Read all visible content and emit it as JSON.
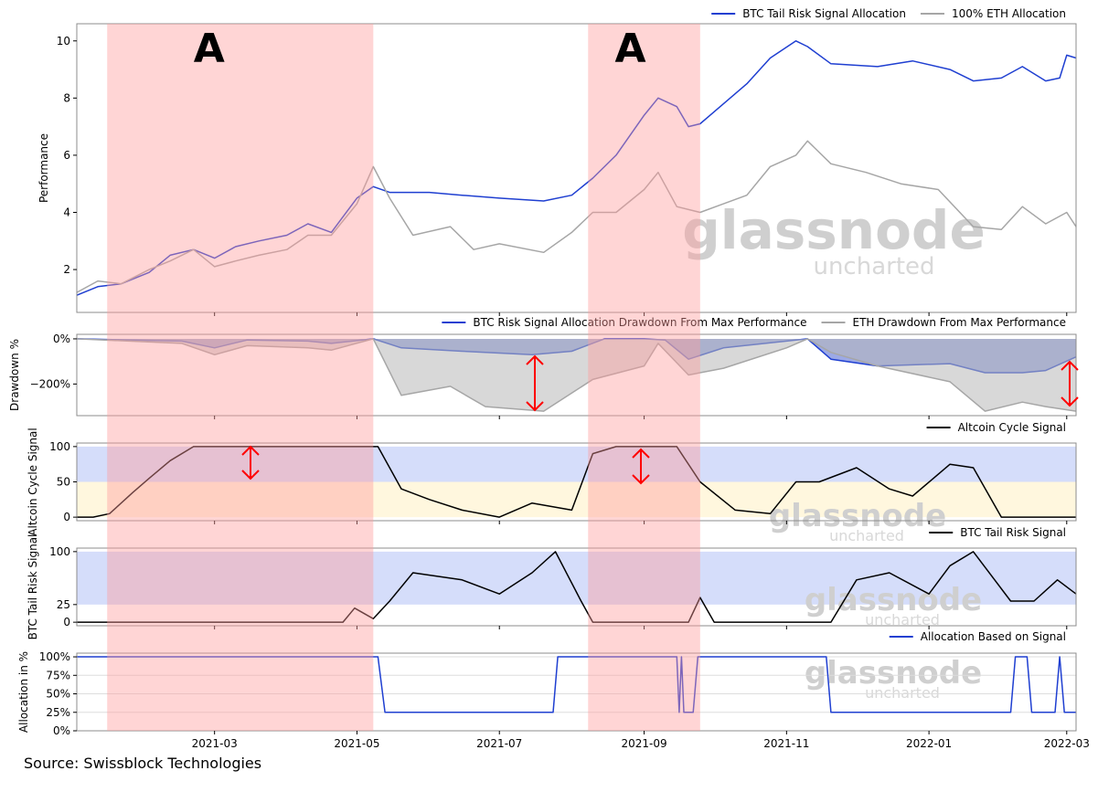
{
  "source": "Source: Swissblock Technologies",
  "regions": {
    "label": "A",
    "periods": [
      [
        "2021-01-14",
        "2021-05-08"
      ],
      [
        "2021-08-08",
        "2021-09-25"
      ]
    ]
  },
  "watermark": {
    "brand": "glassnode",
    "sub": "uncharted"
  },
  "colors": {
    "blue": "#1f3fd1",
    "gray": "#a6a6a6",
    "black": "#000000",
    "shade_red": "#ff9c9c",
    "band_blue": "#b3c1f5",
    "band_yellow": "#fff1c2",
    "arrow_red": "#ff0000"
  },
  "chart_data": [
    {
      "type": "line",
      "ylabel": "Performance",
      "ylim": [
        0.5,
        10.6
      ],
      "yticks": [
        2,
        4,
        6,
        8,
        10
      ],
      "legend": "top-right",
      "series": [
        {
          "name": "BTC Tail Risk Signal Allocation",
          "color": "#1f3fd1",
          "points": [
            [
              "2021-01-01",
              1.1
            ],
            [
              "2021-01-10",
              1.4
            ],
            [
              "2021-01-20",
              1.5
            ],
            [
              "2021-02-01",
              1.9
            ],
            [
              "2021-02-10",
              2.5
            ],
            [
              "2021-02-20",
              2.7
            ],
            [
              "2021-03-01",
              2.4
            ],
            [
              "2021-03-10",
              2.8
            ],
            [
              "2021-03-20",
              3.0
            ],
            [
              "2021-04-01",
              3.2
            ],
            [
              "2021-04-10",
              3.6
            ],
            [
              "2021-04-20",
              3.3
            ],
            [
              "2021-05-01",
              4.5
            ],
            [
              "2021-05-08",
              4.9
            ],
            [
              "2021-05-15",
              4.7
            ],
            [
              "2021-06-01",
              4.7
            ],
            [
              "2021-06-15",
              4.6
            ],
            [
              "2021-07-01",
              4.5
            ],
            [
              "2021-07-20",
              4.4
            ],
            [
              "2021-08-01",
              4.6
            ],
            [
              "2021-08-10",
              5.2
            ],
            [
              "2021-08-20",
              6.0
            ],
            [
              "2021-09-01",
              7.4
            ],
            [
              "2021-09-07",
              8.0
            ],
            [
              "2021-09-15",
              7.7
            ],
            [
              "2021-09-20",
              7.0
            ],
            [
              "2021-09-25",
              7.1
            ],
            [
              "2021-10-05",
              7.8
            ],
            [
              "2021-10-15",
              8.5
            ],
            [
              "2021-10-25",
              9.4
            ],
            [
              "2021-11-05",
              10.0
            ],
            [
              "2021-11-10",
              9.8
            ],
            [
              "2021-11-20",
              9.2
            ],
            [
              "2021-12-10",
              9.1
            ],
            [
              "2021-12-25",
              9.3
            ],
            [
              "2022-01-10",
              9.0
            ],
            [
              "2022-01-20",
              8.6
            ],
            [
              "2022-02-01",
              8.7
            ],
            [
              "2022-02-10",
              9.1
            ],
            [
              "2022-02-20",
              8.6
            ],
            [
              "2022-02-26",
              8.7
            ],
            [
              "2022-03-01",
              9.5
            ],
            [
              "2022-03-05",
              9.4
            ]
          ]
        },
        {
          "name": "100% ETH Allocation",
          "color": "#a6a6a6",
          "points": [
            [
              "2021-01-01",
              1.2
            ],
            [
              "2021-01-10",
              1.6
            ],
            [
              "2021-01-20",
              1.5
            ],
            [
              "2021-02-01",
              2.0
            ],
            [
              "2021-02-10",
              2.3
            ],
            [
              "2021-02-20",
              2.7
            ],
            [
              "2021-03-01",
              2.1
            ],
            [
              "2021-03-10",
              2.3
            ],
            [
              "2021-03-20",
              2.5
            ],
            [
              "2021-04-01",
              2.7
            ],
            [
              "2021-04-10",
              3.2
            ],
            [
              "2021-04-20",
              3.2
            ],
            [
              "2021-05-01",
              4.3
            ],
            [
              "2021-05-08",
              5.6
            ],
            [
              "2021-05-15",
              4.5
            ],
            [
              "2021-05-25",
              3.2
            ],
            [
              "2021-06-10",
              3.5
            ],
            [
              "2021-06-20",
              2.7
            ],
            [
              "2021-07-01",
              2.9
            ],
            [
              "2021-07-20",
              2.6
            ],
            [
              "2021-08-01",
              3.3
            ],
            [
              "2021-08-10",
              4.0
            ],
            [
              "2021-08-20",
              4.0
            ],
            [
              "2021-09-01",
              4.8
            ],
            [
              "2021-09-07",
              5.4
            ],
            [
              "2021-09-15",
              4.2
            ],
            [
              "2021-09-25",
              4.0
            ],
            [
              "2021-10-05",
              4.3
            ],
            [
              "2021-10-15",
              4.6
            ],
            [
              "2021-10-25",
              5.6
            ],
            [
              "2021-11-05",
              6.0
            ],
            [
              "2021-11-10",
              6.5
            ],
            [
              "2021-11-20",
              5.7
            ],
            [
              "2021-12-05",
              5.4
            ],
            [
              "2021-12-20",
              5.0
            ],
            [
              "2022-01-05",
              4.8
            ],
            [
              "2022-01-20",
              3.5
            ],
            [
              "2022-02-01",
              3.4
            ],
            [
              "2022-02-10",
              4.2
            ],
            [
              "2022-02-20",
              3.6
            ],
            [
              "2022-03-01",
              4.0
            ],
            [
              "2022-03-05",
              3.5
            ]
          ]
        }
      ]
    },
    {
      "type": "area",
      "ylabel": "Drawdown %",
      "ylim": [
        -340,
        20
      ],
      "yticks": [
        [
          0,
          "0%"
        ],
        [
          -200,
          "−200%"
        ]
      ],
      "legend": "top-right",
      "series": [
        {
          "name": "BTC Risk Signal Allocation Drawdown From Max Performance",
          "color": "#1f3fd1",
          "points": [
            [
              "2021-01-01",
              0
            ],
            [
              "2021-02-15",
              -10
            ],
            [
              "2021-03-01",
              -40
            ],
            [
              "2021-03-15",
              -5
            ],
            [
              "2021-04-10",
              -10
            ],
            [
              "2021-04-20",
              -20
            ],
            [
              "2021-05-08",
              0
            ],
            [
              "2021-05-20",
              -40
            ],
            [
              "2021-06-15",
              -55
            ],
            [
              "2021-07-15",
              -70
            ],
            [
              "2021-08-01",
              -55
            ],
            [
              "2021-08-15",
              0
            ],
            [
              "2021-09-01",
              0
            ],
            [
              "2021-09-10",
              -5
            ],
            [
              "2021-09-20",
              -90
            ],
            [
              "2021-10-05",
              -40
            ],
            [
              "2021-11-01",
              -10
            ],
            [
              "2021-11-10",
              0
            ],
            [
              "2021-11-20",
              -90
            ],
            [
              "2021-12-10",
              -120
            ],
            [
              "2022-01-10",
              -110
            ],
            [
              "2022-01-25",
              -150
            ],
            [
              "2022-02-10",
              -150
            ],
            [
              "2022-02-20",
              -140
            ],
            [
              "2022-03-05",
              -80
            ]
          ]
        },
        {
          "name": "ETH Drawdown From Max Performance",
          "color": "#a6a6a6",
          "points": [
            [
              "2021-01-01",
              0
            ],
            [
              "2021-02-15",
              -20
            ],
            [
              "2021-03-01",
              -70
            ],
            [
              "2021-03-15",
              -30
            ],
            [
              "2021-04-10",
              -40
            ],
            [
              "2021-04-20",
              -50
            ],
            [
              "2021-05-08",
              0
            ],
            [
              "2021-05-20",
              -250
            ],
            [
              "2021-06-10",
              -210
            ],
            [
              "2021-06-25",
              -300
            ],
            [
              "2021-07-20",
              -320
            ],
            [
              "2021-08-10",
              -180
            ],
            [
              "2021-09-01",
              -120
            ],
            [
              "2021-09-07",
              -20
            ],
            [
              "2021-09-20",
              -160
            ],
            [
              "2021-10-05",
              -130
            ],
            [
              "2021-11-01",
              -40
            ],
            [
              "2021-11-10",
              0
            ],
            [
              "2021-11-20",
              -60
            ],
            [
              "2021-12-10",
              -120
            ],
            [
              "2022-01-10",
              -190
            ],
            [
              "2022-01-25",
              -320
            ],
            [
              "2022-02-10",
              -280
            ],
            [
              "2022-02-20",
              -300
            ],
            [
              "2022-03-05",
              -320
            ]
          ]
        }
      ]
    },
    {
      "type": "line",
      "ylabel": "Altcoin Cycle Signal",
      "ylim": [
        -5,
        105
      ],
      "yticks": [
        0,
        50,
        100
      ],
      "bands": [
        {
          "from": 50,
          "to": 100,
          "color": "#b3c1f5"
        },
        {
          "from": 0,
          "to": 50,
          "color": "#fff1c2"
        }
      ],
      "legend": "top-right",
      "series": [
        {
          "name": "Altcoin Cycle Signal",
          "color": "#000000",
          "points": [
            [
              "2021-01-01",
              0
            ],
            [
              "2021-01-08",
              0
            ],
            [
              "2021-01-15",
              5
            ],
            [
              "2021-01-25",
              35
            ],
            [
              "2021-02-01",
              55
            ],
            [
              "2021-02-10",
              80
            ],
            [
              "2021-02-20",
              100
            ],
            [
              "2021-05-10",
              100
            ],
            [
              "2021-05-20",
              40
            ],
            [
              "2021-06-01",
              25
            ],
            [
              "2021-06-15",
              10
            ],
            [
              "2021-07-01",
              0
            ],
            [
              "2021-07-15",
              20
            ],
            [
              "2021-08-01",
              10
            ],
            [
              "2021-08-10",
              90
            ],
            [
              "2021-08-20",
              100
            ],
            [
              "2021-09-15",
              100
            ],
            [
              "2021-09-25",
              50
            ],
            [
              "2021-10-10",
              10
            ],
            [
              "2021-10-25",
              5
            ],
            [
              "2021-11-05",
              50
            ],
            [
              "2021-11-15",
              50
            ],
            [
              "2021-12-01",
              70
            ],
            [
              "2021-12-15",
              40
            ],
            [
              "2021-12-25",
              30
            ],
            [
              "2022-01-10",
              75
            ],
            [
              "2022-01-20",
              70
            ],
            [
              "2022-02-01",
              0
            ],
            [
              "2022-03-05",
              0
            ]
          ]
        }
      ]
    },
    {
      "type": "line",
      "ylabel": "BTC Tail Risk Signal",
      "ylim": [
        -5,
        105
      ],
      "yticks": [
        0,
        25,
        100
      ],
      "bands": [
        {
          "from": 25,
          "to": 100,
          "color": "#b3c1f5"
        }
      ],
      "legend": "top-right",
      "series": [
        {
          "name": "BTC Tail Risk Signal",
          "color": "#000000",
          "points": [
            [
              "2021-01-01",
              0
            ],
            [
              "2021-04-25",
              0
            ],
            [
              "2021-04-30",
              20
            ],
            [
              "2021-05-08",
              5
            ],
            [
              "2021-05-15",
              30
            ],
            [
              "2021-05-25",
              70
            ],
            [
              "2021-06-15",
              60
            ],
            [
              "2021-07-01",
              40
            ],
            [
              "2021-07-15",
              70
            ],
            [
              "2021-07-25",
              100
            ],
            [
              "2021-08-05",
              30
            ],
            [
              "2021-08-10",
              0
            ],
            [
              "2021-09-20",
              0
            ],
            [
              "2021-09-25",
              35
            ],
            [
              "2021-10-01",
              0
            ],
            [
              "2021-11-20",
              0
            ],
            [
              "2021-12-01",
              60
            ],
            [
              "2021-12-15",
              70
            ],
            [
              "2022-01-01",
              40
            ],
            [
              "2022-01-10",
              80
            ],
            [
              "2022-01-20",
              100
            ],
            [
              "2022-02-05",
              30
            ],
            [
              "2022-02-15",
              30
            ],
            [
              "2022-02-25",
              60
            ],
            [
              "2022-03-05",
              40
            ]
          ]
        }
      ]
    },
    {
      "type": "line",
      "ylabel": "Allocation in %",
      "ylim": [
        0,
        105
      ],
      "yticks": [
        [
          0,
          "0%"
        ],
        [
          25,
          "25%"
        ],
        [
          50,
          "50%"
        ],
        [
          75,
          "75%"
        ],
        [
          100,
          "100%"
        ]
      ],
      "xticks": [
        "2021-03",
        "2021-05",
        "2021-07",
        "2021-09",
        "2021-11",
        "2022-01",
        "2022-03"
      ],
      "legend": "top-right",
      "series": [
        {
          "name": "Allocation Based on Signal",
          "color": "#1f3fd1",
          "points": [
            [
              "2021-01-01",
              100
            ],
            [
              "2021-05-10",
              100
            ],
            [
              "2021-05-13",
              25
            ],
            [
              "2021-07-24",
              25
            ],
            [
              "2021-07-26",
              100
            ],
            [
              "2021-09-15",
              100
            ],
            [
              "2021-09-16",
              25
            ],
            [
              "2021-09-17",
              100
            ],
            [
              "2021-09-18",
              25
            ],
            [
              "2021-09-22",
              25
            ],
            [
              "2021-09-24",
              100
            ],
            [
              "2021-11-18",
              100
            ],
            [
              "2021-11-20",
              25
            ],
            [
              "2022-02-05",
              25
            ],
            [
              "2022-02-07",
              100
            ],
            [
              "2022-02-12",
              100
            ],
            [
              "2022-02-14",
              25
            ],
            [
              "2022-02-24",
              25
            ],
            [
              "2022-02-26",
              100
            ],
            [
              "2022-02-28",
              25
            ],
            [
              "2022-03-05",
              25
            ]
          ]
        }
      ]
    }
  ]
}
